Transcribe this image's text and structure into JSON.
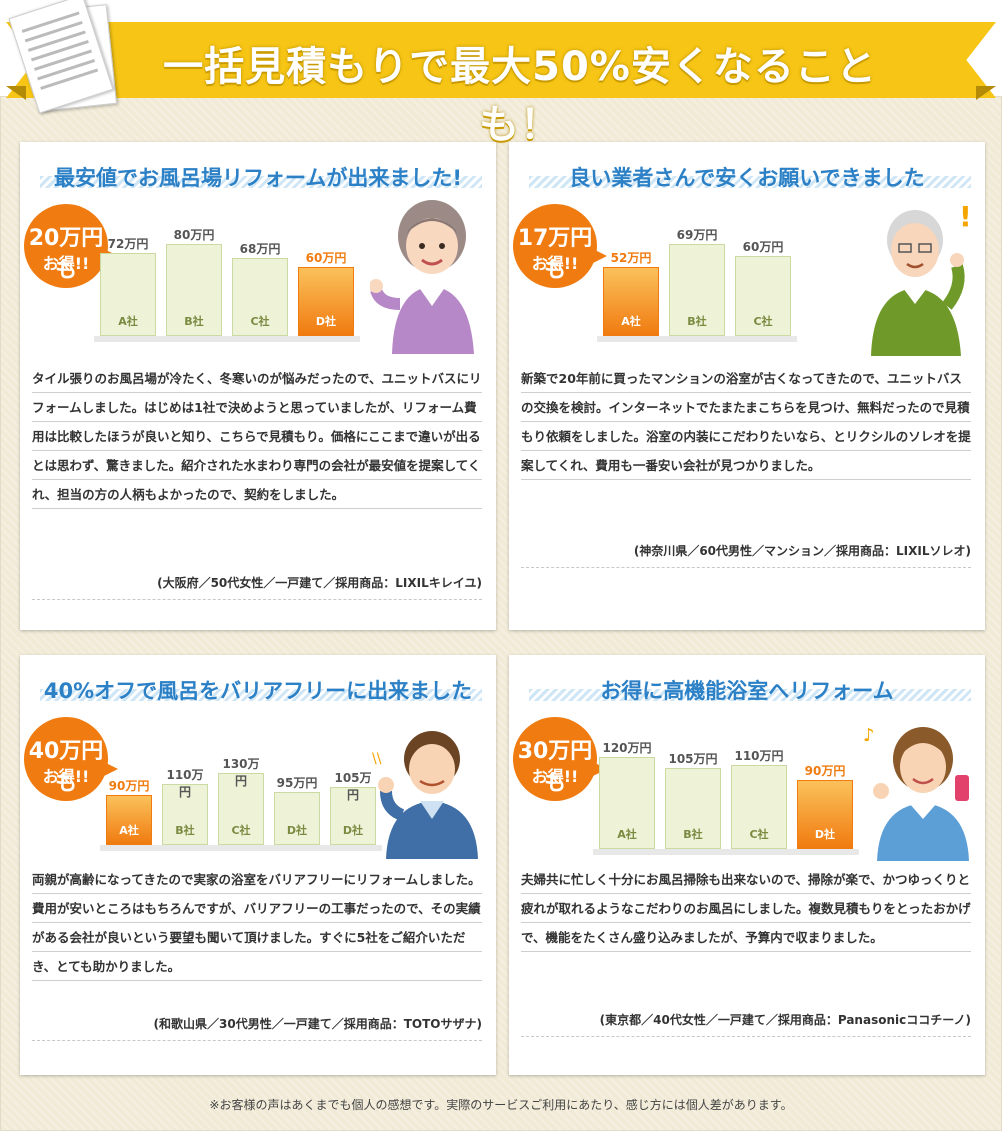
{
  "header": {
    "title": "一括見積もりで最大50%安くなることも！"
  },
  "colors": {
    "ribbon": "#f6c515",
    "accent": "#f07b10",
    "title_blue": "#2c80c6",
    "bar_fill": "#eef3d8"
  },
  "testimonials": [
    {
      "title": "最安値でお風呂場リフォームが出来ました!",
      "badge_line1": "20万円も",
      "badge_line2": "お得!!",
      "person": "older-woman-illustration",
      "chart_data": {
        "type": "bar",
        "categories": [
          "A社",
          "B社",
          "C社",
          "D社"
        ],
        "value_labels": [
          "72万円",
          "80万円",
          "68万円",
          "60万円"
        ],
        "values": [
          72,
          80,
          68,
          60
        ],
        "unit": "万円",
        "highlight_index": 3
      },
      "body": "タイル張りのお風呂場が冷たく、冬寒いのが悩みだったので、ユニットバスにリフォームしました。はじめは1社で決めようと思っていましたが、リフォーム費用は比較したほうが良いと知り、こちらで見積もり。価格にここまで違いが出るとは思わず、驚きました。紹介された水まわり専門の会社が最安値を提案してくれ、担当の方の人柄もよかったので、契約をしました。",
      "meta": "(大阪府／50代女性／一戸建て／採用商品：LIXILキレイユ)"
    },
    {
      "title": "良い業者さんで安くお願いできました",
      "badge_line1": "17万円も",
      "badge_line2": "お得!!",
      "person": "older-man-illustration",
      "chart_data": {
        "type": "bar",
        "categories": [
          "A社",
          "B社",
          "C社"
        ],
        "value_labels": [
          "52万円",
          "69万円",
          "60万円"
        ],
        "values": [
          52,
          69,
          60
        ],
        "unit": "万円",
        "highlight_index": 0
      },
      "body": "新築で20年前に買ったマンションの浴室が古くなってきたので、ユニットバスの交換を検討。インターネットでたまたまこちらを見つけ、無料だったので見積もり依頼をしました。浴室の内装にこだわりたいなら、とリクシルのソレオを提案してくれ、費用も一番安い会社が見つかりました。",
      "meta": "(神奈川県／60代男性／マンション／採用商品：LIXILソレオ)"
    },
    {
      "title": "40%オフで風呂をバリアフリーに出来ました",
      "badge_line1": "40万円も",
      "badge_line2": "お得!!",
      "person": "man-thumbs-up-illustration",
      "chart_data": {
        "type": "bar",
        "categories": [
          "A社",
          "B社",
          "C社",
          "D社",
          "D社"
        ],
        "value_labels": [
          "90万円",
          "110万円",
          "130万円",
          "95万円",
          "105万円"
        ],
        "values": [
          90,
          110,
          130,
          95,
          105
        ],
        "unit": "万円",
        "highlight_index": 0
      },
      "body": "両親が高齢になってきたので実家の浴室をバリアフリーにリフォームしました。費用が安いところはもちろんですが、バリアフリーの工事だったので、その実績がある会社が良いという要望も聞いて頂けました。すぐに5社をご紹介いただき、とても助かりました。",
      "meta": "(和歌山県／30代男性／一戸建て／採用商品：TOTOサザナ)"
    },
    {
      "title": "お得に高機能浴室へリフォーム",
      "badge_line1": "30万円も",
      "badge_line2": "お得!!",
      "person": "woman-with-phone-illustration",
      "chart_data": {
        "type": "bar",
        "categories": [
          "A社",
          "B社",
          "C社",
          "D社"
        ],
        "value_labels": [
          "120万円",
          "105万円",
          "110万円",
          "90万円"
        ],
        "values": [
          120,
          105,
          110,
          90
        ],
        "unit": "万円",
        "highlight_index": 3
      },
      "body": "夫婦共に忙しく十分にお風呂掃除も出来ないので、掃除が楽で、かつゆっくりと疲れが取れるようなこだわりのお風呂にしました。複数見積もりをとったおかげで、機能をたくさん盛り込みましたが、予算内で収まりました。",
      "meta": "(東京都／40代女性／一戸建て／採用商品：Panasonicココチーノ)"
    }
  ],
  "footnote": "※お客様の声はあくまでも個人の感想です。実際のサービスご利用にあたり、感じ方には個人差があります。"
}
